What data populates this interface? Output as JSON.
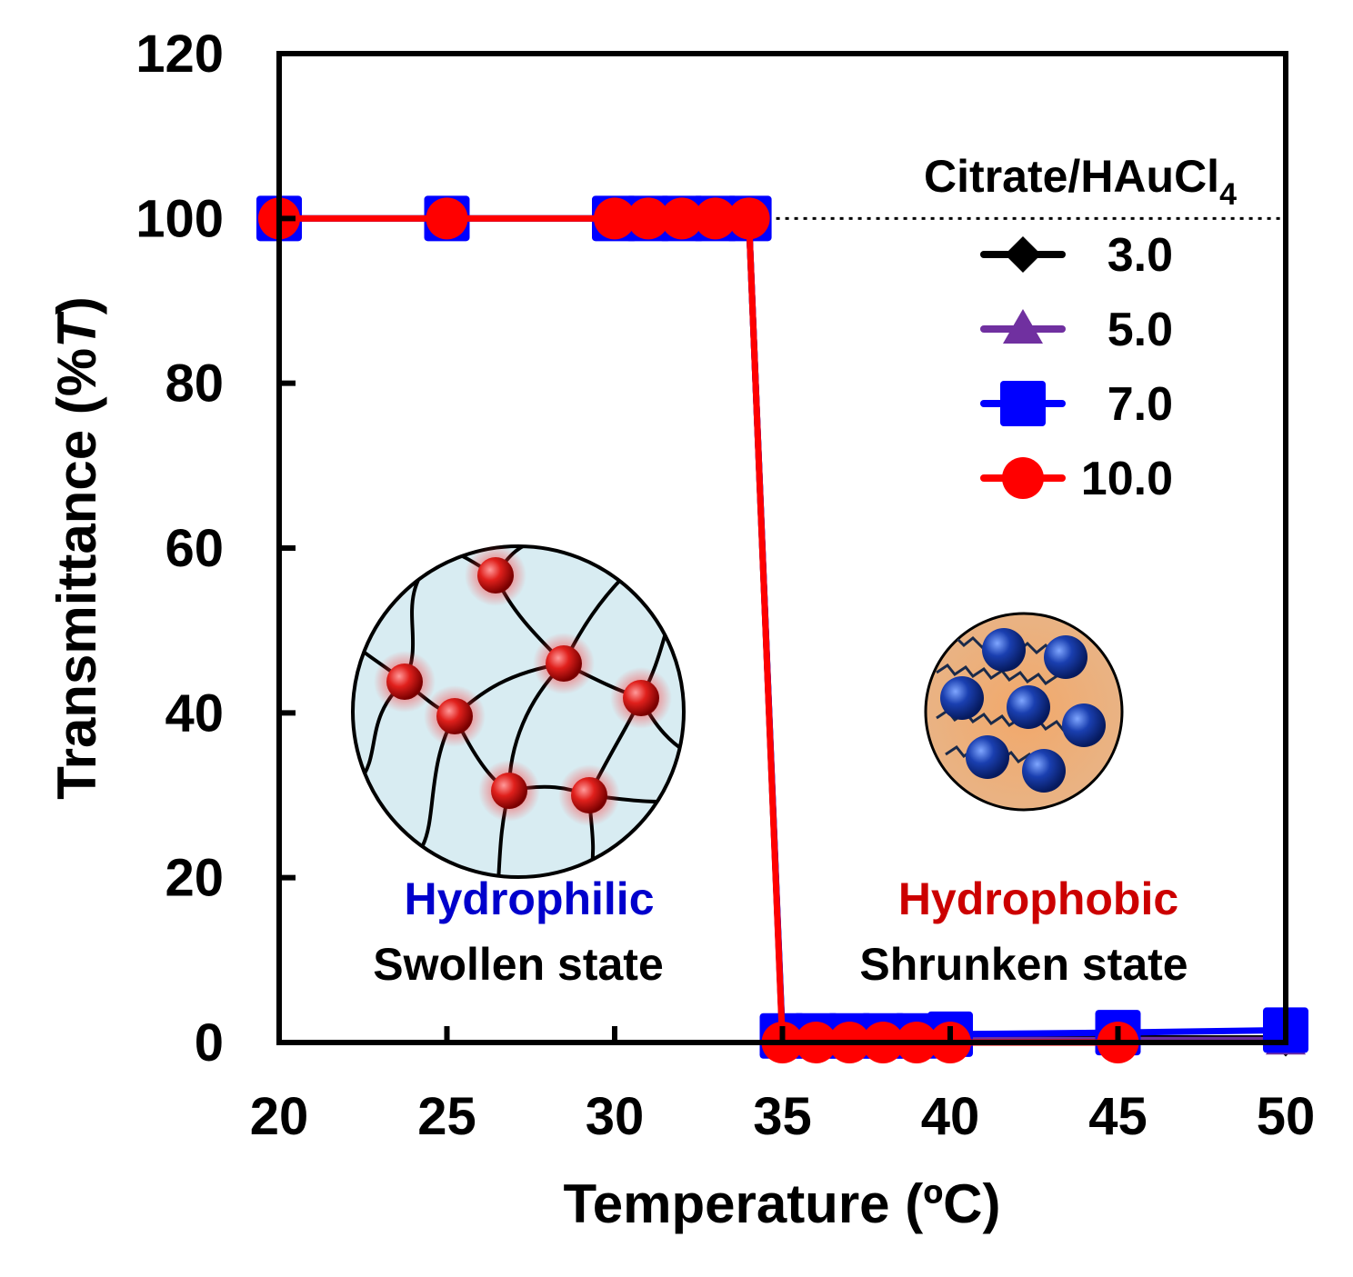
{
  "chart_data": {
    "type": "line",
    "xlabel": "Temperature (ºC)",
    "ylabel_main": "Transmittance (%",
    "ylabel_italic": "T",
    "ylabel_close": ")",
    "xlim": [
      20,
      50
    ],
    "ylim": [
      0,
      120
    ],
    "xticks": [
      "20",
      "25",
      "30",
      "35",
      "40",
      "45",
      "50"
    ],
    "yticks": [
      "0",
      "20",
      "40",
      "60",
      "80",
      "100",
      "120"
    ],
    "reference_line": {
      "y": 100,
      "from_x": 34,
      "to_x": 50,
      "style": "dotted"
    },
    "legend": {
      "title_main": "Citrate/HAuCl",
      "title_sub": "4",
      "placement": "right, upper"
    },
    "series": [
      {
        "name": "3.0",
        "color": "#000000",
        "marker": "diamond",
        "x": [
          20,
          25,
          30,
          31,
          32,
          33,
          34,
          35,
          36,
          37,
          38,
          39,
          40,
          45,
          50
        ],
        "y": [
          100,
          100,
          100,
          100,
          100,
          100,
          100,
          0.5,
          0.5,
          0.5,
          0.5,
          0.5,
          0.5,
          0.5,
          0.5
        ]
      },
      {
        "name": "5.0",
        "color": "#7030a0",
        "marker": "triangle",
        "x": [
          20,
          25,
          30,
          31,
          32,
          33,
          34,
          35,
          36,
          37,
          38,
          39,
          40,
          45,
          50
        ],
        "y": [
          100,
          100,
          100,
          100,
          100,
          100,
          100,
          0.3,
          0.3,
          0.3,
          0.3,
          0.3,
          0.3,
          0.3,
          0.3
        ]
      },
      {
        "name": "7.0",
        "color": "#0000ff",
        "marker": "square",
        "x": [
          20,
          25,
          30,
          31,
          32,
          33,
          34,
          35,
          36,
          37,
          38,
          39,
          40,
          45,
          50
        ],
        "y": [
          100,
          100,
          100,
          100,
          100,
          100,
          100,
          0.8,
          0.8,
          0.8,
          0.8,
          0.8,
          1.0,
          1.2,
          1.5
        ]
      },
      {
        "name": "10.0",
        "color": "#ff0000",
        "marker": "circle",
        "x": [
          20,
          25,
          30,
          31,
          32,
          33,
          34,
          35,
          36,
          37,
          38,
          39,
          40,
          45
        ],
        "y": [
          100,
          100,
          100,
          100,
          100,
          100,
          100,
          0,
          0,
          0,
          0,
          0,
          0,
          0
        ]
      }
    ],
    "annotations": {
      "left_top": "Hydrophilic",
      "left_bottom": "Swollen state",
      "right_top": "Hydrophobic",
      "right_bottom": "Shrunken state",
      "left_color": "#0000cc",
      "right_color": "#cc0000"
    }
  }
}
